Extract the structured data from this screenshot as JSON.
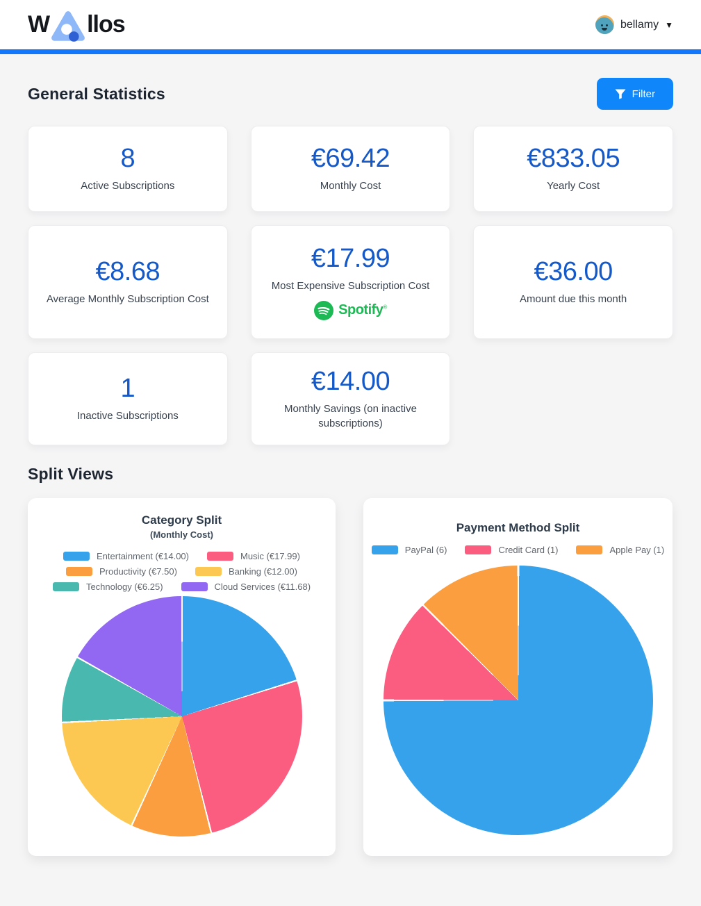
{
  "header": {
    "logo_prefix": "W",
    "logo_suffix": "llos",
    "user_name": "bellamy",
    "caret": "▼"
  },
  "sections": {
    "general_title": "General Statistics",
    "filter_label": "Filter",
    "split_title": "Split Views"
  },
  "stats": [
    {
      "value": "8",
      "label": "Active Subscriptions"
    },
    {
      "value": "€69.42",
      "label": "Monthly Cost"
    },
    {
      "value": "€833.05",
      "label": "Yearly Cost"
    },
    {
      "value": "€8.68",
      "label": "Average Monthly Subscription Cost"
    },
    {
      "value": "€17.99",
      "label": "Most Expensive Subscription Cost",
      "logo_text": "Spotify"
    },
    {
      "value": "€36.00",
      "label": "Amount due this month"
    },
    {
      "value": "1",
      "label": "Inactive Subscriptions"
    },
    {
      "value": "€14.00",
      "label": "Monthly Savings (on inactive subscriptions)"
    }
  ],
  "chart_data": [
    {
      "type": "pie",
      "title": "Category Split",
      "subtitle": "(Monthly Cost)",
      "unit": "EUR",
      "total": 69.42,
      "start_angle_deg": 0,
      "direction": "clockwise",
      "legend_position": "top",
      "legend_columns": 2,
      "slices": [
        {
          "name": "Entertainment",
          "label": "Entertainment (€14.00)",
          "value": 14.0,
          "color": "#36A2EB"
        },
        {
          "name": "Music",
          "label": "Music (€17.99)",
          "value": 17.99,
          "color": "#FB5D80"
        },
        {
          "name": "Productivity",
          "label": "Productivity (€7.50)",
          "value": 7.5,
          "color": "#FB9E3F"
        },
        {
          "name": "Banking",
          "label": "Banking (€12.00)",
          "value": 12.0,
          "color": "#FCC851"
        },
        {
          "name": "Technology",
          "label": "Technology (€6.25)",
          "value": 6.25,
          "color": "#49B8AE"
        },
        {
          "name": "Cloud Services",
          "label": "Cloud Services (€11.68)",
          "value": 11.68,
          "color": "#9268F2"
        }
      ]
    },
    {
      "type": "pie",
      "title": "Payment Method Split",
      "unit": "count",
      "total": 8,
      "start_angle_deg": 0,
      "direction": "clockwise",
      "legend_position": "top",
      "legend_columns": 3,
      "slices": [
        {
          "name": "PayPal",
          "label": "PayPal (6)",
          "value": 6,
          "color": "#36A2EB"
        },
        {
          "name": "Credit Card",
          "label": "Credit Card (1)",
          "value": 1,
          "color": "#FB5D80"
        },
        {
          "name": "Apple Pay",
          "label": "Apple Pay (1)",
          "value": 1,
          "color": "#FB9E3F"
        }
      ]
    }
  ],
  "colors": {
    "accent_bar": "#1377fd",
    "filter_button": "#0f87fa",
    "stat_number": "#1459c7",
    "spotify_green": "#1DB954",
    "logo_triangle_light": "#8FB8F8",
    "logo_dot_dark": "#2E5FD3",
    "page_background": "#f5f5f6"
  }
}
